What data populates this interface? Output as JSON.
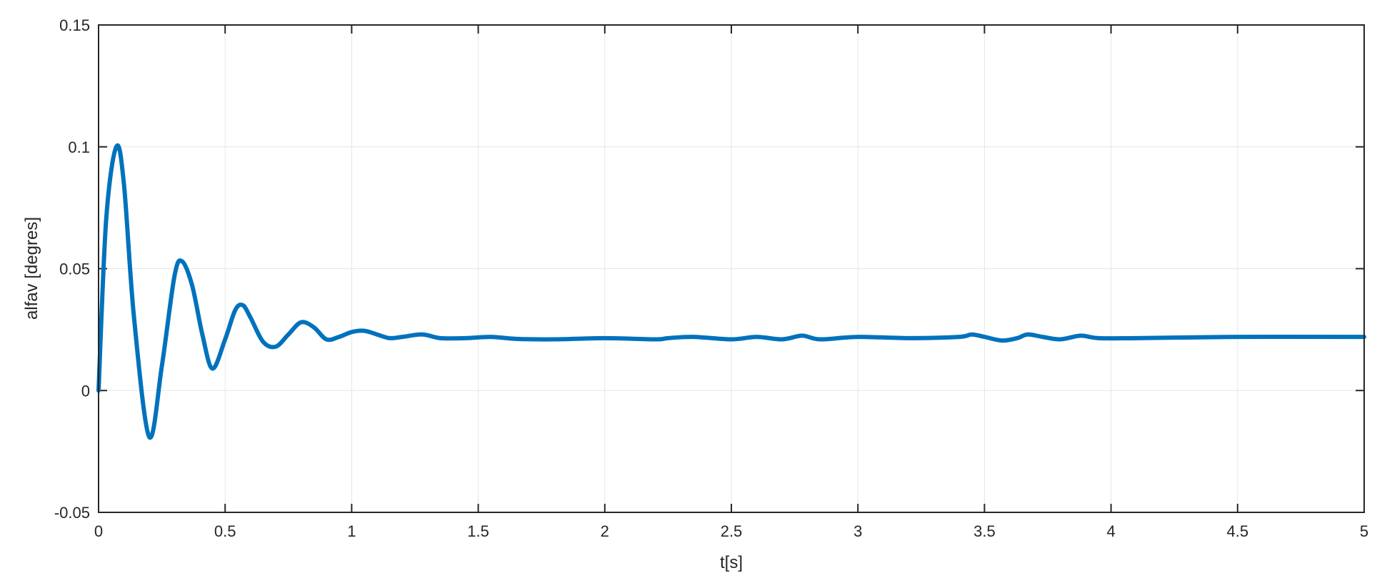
{
  "chart_data": {
    "type": "line",
    "title": "",
    "xlabel": "t[s]",
    "ylabel": "alfav [degres]",
    "xlim": [
      0,
      5
    ],
    "ylim": [
      -0.05,
      0.15
    ],
    "xticks": [
      0,
      0.5,
      1,
      1.5,
      2,
      2.5,
      3,
      3.5,
      4,
      4.5,
      5
    ],
    "xtick_labels": [
      "0",
      "0.5",
      "1",
      "1.5",
      "2",
      "2.5",
      "3",
      "3.5",
      "4",
      "4.5",
      "5"
    ],
    "yticks": [
      -0.05,
      0,
      0.05,
      0.1,
      0.15
    ],
    "ytick_labels": [
      "-0.05",
      "0",
      "0.05",
      "0.1",
      "0.15"
    ],
    "grid": true,
    "line_color": "#0072BD",
    "series": [
      {
        "x": [
          0,
          0.03,
          0.07,
          0.1,
          0.14,
          0.2,
          0.25,
          0.3,
          0.33,
          0.37,
          0.41,
          0.45,
          0.5,
          0.54,
          0.57,
          0.6,
          0.65,
          0.7,
          0.75,
          0.8,
          0.85,
          0.9,
          0.95,
          1.0,
          1.05,
          1.1,
          1.15,
          1.2,
          1.28,
          1.35,
          1.45,
          1.55,
          1.65,
          1.8,
          2.0,
          2.2,
          2.25,
          2.35,
          2.5,
          2.6,
          2.7,
          2.78,
          2.85,
          3.0,
          3.2,
          3.4,
          3.45,
          3.5,
          3.57,
          3.63,
          3.67,
          3.73,
          3.8,
          3.88,
          3.95,
          4.1,
          4.5,
          5.0
        ],
        "y": [
          0.0,
          0.07,
          0.1,
          0.085,
          0.03,
          -0.019,
          0.01,
          0.047,
          0.053,
          0.043,
          0.023,
          0.009,
          0.021,
          0.033,
          0.035,
          0.03,
          0.02,
          0.018,
          0.023,
          0.028,
          0.026,
          0.021,
          0.022,
          0.024,
          0.0245,
          0.023,
          0.0215,
          0.022,
          0.023,
          0.0215,
          0.0215,
          0.022,
          0.0212,
          0.021,
          0.0215,
          0.021,
          0.0215,
          0.022,
          0.021,
          0.022,
          0.021,
          0.0225,
          0.021,
          0.022,
          0.0215,
          0.022,
          0.023,
          0.022,
          0.0205,
          0.0215,
          0.023,
          0.022,
          0.021,
          0.0225,
          0.0215,
          0.0215,
          0.022,
          0.022
        ]
      }
    ]
  }
}
